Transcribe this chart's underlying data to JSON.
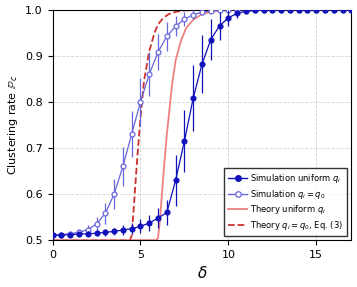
{
  "xlim": [
    0,
    17
  ],
  "ylim": [
    0.5,
    1.0
  ],
  "xlabel": "$\\delta$",
  "ylabel": "Clustering rate $\\mathbb{P}_c$",
  "xticks": [
    0,
    5,
    10,
    15
  ],
  "yticks": [
    0.5,
    0.6,
    0.7,
    0.8,
    0.9,
    1.0
  ],
  "grid_color": "#c8c8c8",
  "sim_uniform_color": "#1111bb",
  "sim_q0_color": "#6666dd",
  "theory_uniform_color": "#f08080",
  "theory_q0_color": "#cc3333",
  "legend_labels": [
    "Simulation uniform $q_i$",
    "Simulation $q_i = q_0$",
    "Theory uniform $q_i$",
    "Theory $q_i = q_0$, Eq. (3)"
  ],
  "sim_uniform_x": [
    0.0,
    0.5,
    1.0,
    1.5,
    2.0,
    2.5,
    3.0,
    3.5,
    4.0,
    4.5,
    5.0,
    5.5,
    6.0,
    6.5,
    7.0,
    7.5,
    8.0,
    8.5,
    9.0,
    9.5,
    10.0,
    10.5,
    11.0,
    11.5,
    12.0,
    12.5,
    13.0,
    13.5,
    14.0,
    14.5,
    15.0,
    15.5,
    16.0,
    16.5,
    17.0
  ],
  "sim_uniform_y": [
    0.511,
    0.511,
    0.512,
    0.513,
    0.514,
    0.515,
    0.517,
    0.519,
    0.522,
    0.525,
    0.53,
    0.537,
    0.548,
    0.56,
    0.63,
    0.715,
    0.808,
    0.882,
    0.935,
    0.965,
    0.982,
    0.992,
    0.996,
    0.998,
    0.999,
    1.0,
    1.0,
    1.0,
    1.0,
    1.0,
    1.0,
    1.0,
    1.0,
    1.0,
    1.0
  ],
  "sim_uniform_yerr": [
    0.003,
    0.003,
    0.004,
    0.004,
    0.005,
    0.006,
    0.007,
    0.008,
    0.01,
    0.012,
    0.015,
    0.018,
    0.022,
    0.028,
    0.055,
    0.068,
    0.072,
    0.062,
    0.045,
    0.03,
    0.018,
    0.01,
    0.005,
    0.003,
    0.002,
    0.001,
    0.001,
    0.0,
    0.0,
    0.0,
    0.0,
    0.0,
    0.0,
    0.0,
    0.0
  ],
  "sim_q0_x": [
    0.0,
    0.5,
    1.0,
    1.5,
    2.0,
    2.5,
    3.0,
    3.5,
    4.0,
    4.5,
    5.0,
    5.5,
    6.0,
    6.5,
    7.0,
    7.5,
    8.0,
    8.5,
    9.0,
    9.5,
    10.0,
    10.5,
    11.0,
    11.5,
    12.0,
    12.5,
    13.0,
    13.5,
    14.0,
    14.5,
    15.0,
    15.5,
    16.0,
    16.5,
    17.0
  ],
  "sim_q0_y": [
    0.511,
    0.512,
    0.514,
    0.517,
    0.523,
    0.535,
    0.558,
    0.6,
    0.66,
    0.73,
    0.8,
    0.86,
    0.908,
    0.942,
    0.964,
    0.979,
    0.989,
    0.994,
    0.997,
    0.999,
    1.0,
    1.0,
    1.0,
    1.0,
    1.0,
    1.0,
    1.0,
    1.0,
    1.0,
    1.0,
    1.0,
    1.0,
    1.0,
    1.0,
    1.0
  ],
  "sim_q0_yerr": [
    0.003,
    0.004,
    0.005,
    0.007,
    0.01,
    0.015,
    0.022,
    0.032,
    0.042,
    0.05,
    0.052,
    0.048,
    0.04,
    0.032,
    0.022,
    0.015,
    0.01,
    0.006,
    0.004,
    0.002,
    0.001,
    0.001,
    0.0,
    0.0,
    0.0,
    0.0,
    0.0,
    0.0,
    0.0,
    0.0,
    0.0,
    0.0,
    0.0,
    0.0,
    0.0
  ],
  "theory_uniform_x": [
    0.0,
    5.9,
    6.0,
    6.1,
    6.3,
    6.5,
    6.8,
    7.0,
    7.3,
    7.6,
    8.0,
    8.5,
    9.0,
    9.5,
    10.0,
    11.0,
    12.0,
    13.0,
    14.0,
    15.0,
    16.0,
    17.0
  ],
  "theory_uniform_y": [
    0.5,
    0.5,
    0.505,
    0.54,
    0.64,
    0.73,
    0.838,
    0.89,
    0.932,
    0.96,
    0.978,
    0.99,
    0.995,
    0.998,
    0.999,
    1.0,
    1.0,
    1.0,
    1.0,
    1.0,
    1.0,
    1.0
  ],
  "theory_q0_x": [
    0.0,
    4.4,
    4.5,
    4.6,
    4.8,
    5.0,
    5.2,
    5.5,
    5.8,
    6.0,
    6.3,
    6.6,
    7.0,
    7.5,
    8.0,
    8.5,
    9.0,
    10.0,
    11.0,
    12.0,
    13.0,
    14.0,
    15.0,
    16.0,
    17.0
  ],
  "theory_q0_y": [
    0.5,
    0.5,
    0.51,
    0.56,
    0.67,
    0.765,
    0.845,
    0.91,
    0.95,
    0.968,
    0.982,
    0.99,
    0.995,
    0.998,
    0.999,
    1.0,
    1.0,
    1.0,
    1.0,
    1.0,
    1.0,
    1.0,
    1.0,
    1.0,
    1.0
  ]
}
